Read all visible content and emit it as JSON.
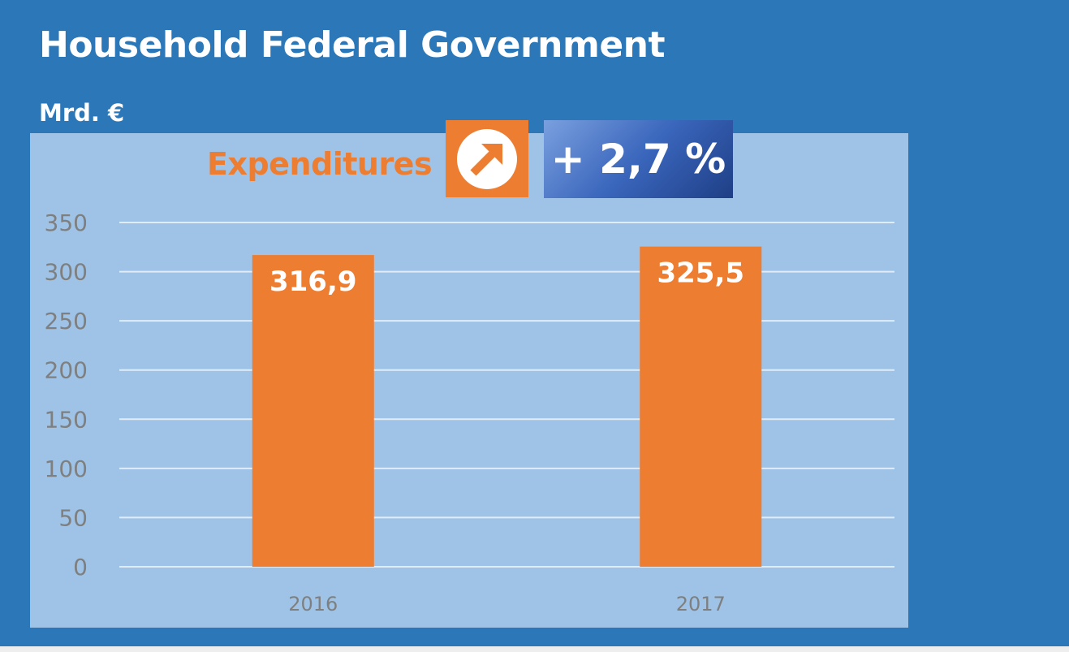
{
  "header": {
    "title": "Household Federal Government",
    "unit": "Mrd. €"
  },
  "badge": {
    "label": "Expenditures",
    "icon": "arrow-up-right-circle-icon",
    "change": "+ 2,7 %"
  },
  "colors": {
    "background": "#2b77b8",
    "panel": "#9ec3e6",
    "bar": "#ed7d31",
    "gridline": "#e0ecf7",
    "tick_text": "#7f7f7f"
  },
  "chart_data": {
    "type": "bar",
    "title": "Household Federal Government",
    "ylabel": "Mrd. €",
    "xlabel": "",
    "categories": [
      "2016",
      "2017"
    ],
    "values": [
      316.9,
      325.5
    ],
    "value_labels": [
      "316,9",
      "325,5"
    ],
    "ylim": [
      0,
      350
    ],
    "yticks": [
      0,
      50,
      100,
      150,
      200,
      250,
      300,
      350
    ],
    "grid": true,
    "legend": "none"
  }
}
